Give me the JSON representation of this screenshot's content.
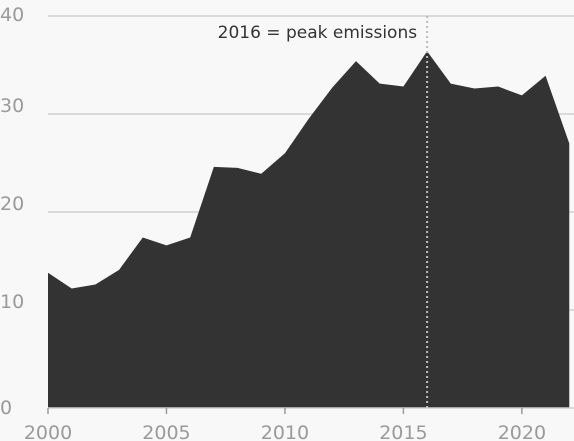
{
  "colors": {
    "background": "#f8f8f8",
    "area_fill": "#333333",
    "gridline": "#cfcfcf",
    "tick_text": "#9a9a9a",
    "annotation_text": "#333333",
    "annotation_line": "#bdbdbd"
  },
  "chart_data": {
    "type": "area",
    "title": "",
    "xlabel": "",
    "ylabel": "",
    "xlim": [
      2000,
      2022.2
    ],
    "ylim": [
      0,
      40
    ],
    "grid": true,
    "x_ticks": [
      2000,
      2005,
      2010,
      2015,
      2020
    ],
    "y_ticks": [
      0,
      10,
      20,
      30,
      40
    ],
    "x": [
      2000,
      2001,
      2002,
      2003,
      2004,
      2005,
      2006,
      2007,
      2008,
      2009,
      2010,
      2011,
      2012,
      2013,
      2014,
      2015,
      2016,
      2017,
      2018,
      2019,
      2020,
      2021,
      2022
    ],
    "series": [
      {
        "values": [
          13.8,
          12.2,
          12.6,
          14.1,
          17.4,
          16.6,
          17.4,
          24.6,
          24.5,
          23.9,
          26.0,
          29.5,
          32.7,
          35.4,
          33.1,
          32.8,
          36.4,
          33.1,
          32.6,
          32.8,
          31.9,
          33.9,
          27.0
        ]
      }
    ],
    "annotations": [
      {
        "x": 2016,
        "text": "2016 = peak emissions"
      }
    ]
  }
}
